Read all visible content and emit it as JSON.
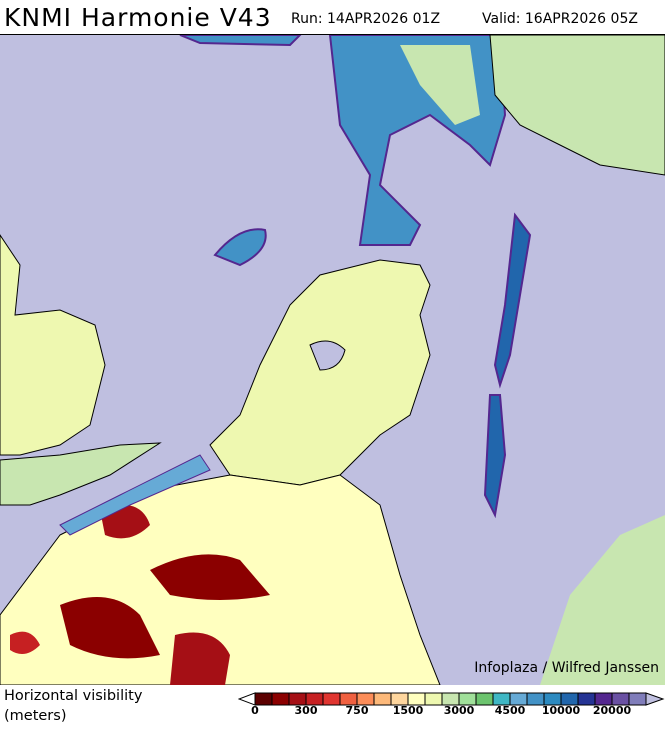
{
  "header": {
    "title": "KNMI Harmonie V43",
    "run": "Run: 14APR2026 01Z",
    "valid": "Valid: 16APR2026 05Z"
  },
  "map": {
    "credit": "Infoplaza / Wilfred Janssen",
    "sea_color": "#bfbfe0"
  },
  "legend": {
    "label_line1": "Horizontal visibility",
    "label_line2": "(meters)",
    "ticks": [
      "0",
      "300",
      "750",
      "1500",
      "3000",
      "4500",
      "10000",
      "20000"
    ],
    "colors": [
      "#5c0000",
      "#8b0000",
      "#a50f15",
      "#c62022",
      "#e03530",
      "#f06040",
      "#fc8d59",
      "#fdb97a",
      "#fed69e",
      "#ffffbf",
      "#eef8b0",
      "#c8e6b0",
      "#a0e09a",
      "#6cc46e",
      "#3fb7c4",
      "#66aad6",
      "#4292c6",
      "#2c8ac0",
      "#2166ac",
      "#253494",
      "#54278f",
      "#6a51a3",
      "#807dba"
    ],
    "under_color": "#ffffff",
    "over_color": "#c0c0e0"
  }
}
